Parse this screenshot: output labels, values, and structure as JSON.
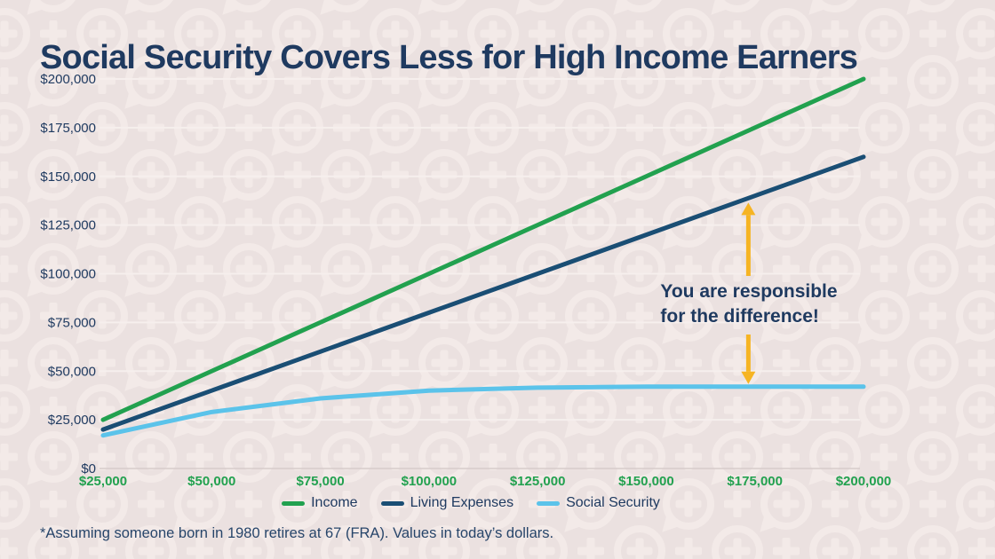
{
  "title": "Social Security Covers Less for High Income Earners",
  "footnote": "*Assuming someone born in 1980 retires at 67 (FRA). Values in today’s dollars.",
  "colors": {
    "background": "#EBE1E0",
    "watermark": "#F3EAE8",
    "navy_text": "#1F3A60",
    "green": "#22A14F",
    "navy_line": "#1A4E74",
    "light_blue": "#5BC3EA",
    "amber": "#F6B423",
    "grid": "#F6EFED",
    "grid_zero": "#D7CCCB"
  },
  "chart_data": {
    "type": "line",
    "title": "",
    "xlabel": "",
    "ylabel": "",
    "xlim": [
      25000,
      200000
    ],
    "ylim": [
      0,
      200000
    ],
    "grid": "horizontal",
    "legend_position": "bottom",
    "x": [
      25000,
      50000,
      75000,
      100000,
      125000,
      150000,
      175000,
      200000
    ],
    "x_tick_labels": [
      "$25,000",
      "$50,000",
      "$75,000",
      "$100,000",
      "$125,000",
      "$150,000",
      "$175,000",
      "$200,000"
    ],
    "y_ticks": [
      0,
      25000,
      50000,
      75000,
      100000,
      125000,
      150000,
      175000,
      200000
    ],
    "y_tick_labels": [
      "$0",
      "$25,000",
      "$50,000",
      "$75,000",
      "$100,000",
      "$125,000",
      "$150,000",
      "$175,000",
      "$200,000"
    ],
    "series": [
      {
        "name": "Income",
        "color_key": "green",
        "values": [
          25000,
          50000,
          75000,
          100000,
          125000,
          150000,
          175000,
          200000
        ]
      },
      {
        "name": "Living Expenses",
        "color_key": "navy_line",
        "values": [
          20000,
          40000,
          60000,
          80000,
          100000,
          120000,
          140000,
          160000
        ]
      },
      {
        "name": "Social Security",
        "color_key": "light_blue",
        "values": [
          17000,
          29000,
          36000,
          40000,
          41500,
          42000,
          42000,
          42000
        ]
      }
    ]
  },
  "annotation": {
    "line1": "You are responsible",
    "line2": "for the difference!",
    "x_value": 173500,
    "top_value": 138800,
    "bottom_value": 42000
  }
}
